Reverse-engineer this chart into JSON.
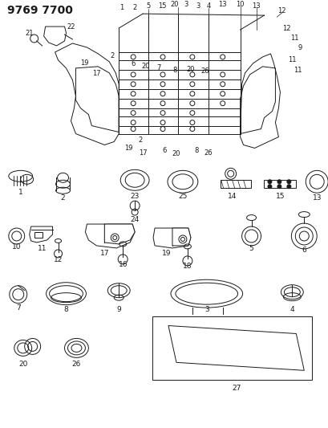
{
  "title": "9769 7700",
  "bg": "#ffffff",
  "lc": "#1a1a1a",
  "parts": {
    "row1_parts": [
      "1",
      "2",
      "23",
      "24",
      "25",
      "14",
      "15",
      "13"
    ],
    "row2_parts": [
      "10",
      "11",
      "12",
      "17",
      "16",
      "19",
      "18",
      "5",
      "6"
    ],
    "row3_parts": [
      "7",
      "8",
      "9",
      "3",
      "4"
    ],
    "row4_parts": [
      "20",
      "26",
      "27"
    ]
  }
}
